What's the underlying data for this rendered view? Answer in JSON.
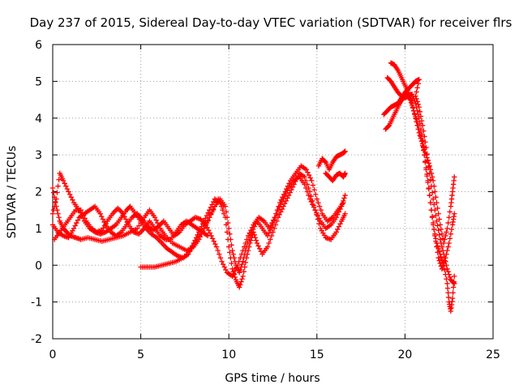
{
  "chart_data": {
    "type": "scatter",
    "title": "Day 237 of 2015, Sidereal Day-to-day VTEC variation (SDTVAR) for receiver flrs",
    "xlabel": "GPS time / hours",
    "ylabel": "SDTVAR / TECUs",
    "xlim": [
      0,
      25
    ],
    "ylim": [
      -2,
      6
    ],
    "xticks": [
      "0",
      "5",
      "10",
      "15",
      "20",
      "25"
    ],
    "yticks": [
      "-2",
      "-1",
      "0",
      "1",
      "2",
      "3",
      "4",
      "5",
      "6"
    ],
    "grid": true,
    "marker": "plus",
    "color": "#ff0000",
    "series": [
      {
        "points": [
          [
            0.0,
            2.1
          ],
          [
            0.2,
            1.6
          ],
          [
            0.4,
            1.2
          ],
          [
            0.6,
            1.0
          ],
          [
            0.8,
            0.9
          ],
          [
            1.0,
            0.8
          ],
          [
            1.3,
            0.75
          ],
          [
            1.6,
            0.7
          ],
          [
            2.0,
            0.75
          ],
          [
            2.4,
            0.7
          ],
          [
            2.8,
            0.65
          ],
          [
            3.2,
            0.7
          ],
          [
            3.6,
            0.75
          ],
          [
            4.0,
            0.8
          ],
          [
            4.4,
            0.9
          ],
          [
            4.8,
            1.0
          ],
          [
            5.2,
            1.3
          ],
          [
            5.5,
            1.5
          ],
          [
            5.8,
            1.3
          ],
          [
            6.1,
            1.0
          ],
          [
            6.4,
            0.8
          ],
          [
            6.8,
            0.6
          ],
          [
            7.2,
            0.5
          ],
          [
            7.6,
            0.4
          ],
          [
            8.0,
            0.5
          ],
          [
            8.3,
            0.7
          ],
          [
            8.6,
            1.0
          ],
          [
            8.9,
            1.3
          ],
          [
            9.2,
            1.6
          ],
          [
            9.5,
            1.8
          ],
          [
            9.8,
            1.6
          ],
          [
            10.0,
            1.0
          ],
          [
            10.2,
            0.4
          ],
          [
            10.4,
            0.0
          ],
          [
            10.6,
            -0.2
          ],
          [
            10.8,
            0.1
          ],
          [
            11.0,
            0.5
          ],
          [
            11.3,
            0.9
          ],
          [
            11.6,
            1.2
          ],
          [
            11.9,
            1.0
          ],
          [
            12.2,
            0.8
          ],
          [
            12.5,
            1.1
          ],
          [
            12.8,
            1.5
          ],
          [
            13.1,
            1.8
          ],
          [
            13.4,
            2.1
          ],
          [
            13.7,
            2.3
          ],
          [
            14.0,
            2.4
          ],
          [
            14.3,
            2.2
          ],
          [
            14.6,
            1.8
          ],
          [
            14.9,
            1.5
          ],
          [
            15.2,
            1.2
          ],
          [
            15.5,
            1.0
          ],
          [
            15.8,
            1.1
          ],
          [
            16.1,
            1.3
          ],
          [
            16.4,
            1.6
          ],
          [
            16.6,
            1.9
          ]
        ]
      },
      {
        "points": [
          [
            0.0,
            1.4
          ],
          [
            0.2,
            1.8
          ],
          [
            0.4,
            2.5
          ],
          [
            0.6,
            2.3
          ],
          [
            0.9,
            2.0
          ],
          [
            1.2,
            1.7
          ],
          [
            1.5,
            1.5
          ],
          [
            1.8,
            1.2
          ],
          [
            2.1,
            1.0
          ],
          [
            2.4,
            0.9
          ],
          [
            2.7,
            0.85
          ],
          [
            3.0,
            0.9
          ],
          [
            3.3,
            1.0
          ],
          [
            3.6,
            1.1
          ],
          [
            3.9,
            1.3
          ],
          [
            4.2,
            1.5
          ],
          [
            4.4,
            1.6
          ],
          [
            4.7,
            1.4
          ],
          [
            5.0,
            1.2
          ],
          [
            5.3,
            1.0
          ],
          [
            5.6,
            0.85
          ],
          [
            5.9,
            0.75
          ],
          [
            6.2,
            0.6
          ],
          [
            6.5,
            0.45
          ],
          [
            6.8,
            0.35
          ],
          [
            7.1,
            0.25
          ],
          [
            7.4,
            0.2
          ],
          [
            7.7,
            0.3
          ],
          [
            8.0,
            0.6
          ],
          [
            8.3,
            0.9
          ],
          [
            8.6,
            1.2
          ],
          [
            8.9,
            1.5
          ],
          [
            9.2,
            1.8
          ],
          [
            9.5,
            1.7
          ],
          [
            9.8,
            1.3
          ],
          [
            10.0,
            0.5
          ],
          [
            10.2,
            -0.1
          ],
          [
            10.4,
            -0.4
          ],
          [
            10.6,
            -0.6
          ],
          [
            10.8,
            -0.3
          ],
          [
            11.0,
            0.2
          ],
          [
            11.2,
            0.6
          ],
          [
            11.4,
            0.9
          ],
          [
            11.6,
            0.6
          ],
          [
            11.9,
            0.3
          ],
          [
            12.2,
            0.5
          ],
          [
            12.5,
            0.9
          ],
          [
            12.8,
            1.3
          ],
          [
            13.1,
            1.6
          ],
          [
            13.4,
            1.9
          ],
          [
            13.7,
            2.2
          ],
          [
            14.0,
            2.5
          ],
          [
            14.3,
            2.4
          ],
          [
            14.6,
            2.0
          ],
          [
            14.9,
            1.5
          ],
          [
            15.2,
            1.0
          ],
          [
            15.5,
            0.75
          ],
          [
            15.8,
            0.7
          ],
          [
            16.1,
            0.9
          ],
          [
            16.4,
            1.2
          ],
          [
            16.6,
            1.4
          ]
        ]
      },
      {
        "points": [
          [
            0.0,
            1.1
          ],
          [
            0.3,
            0.9
          ],
          [
            0.6,
            0.8
          ],
          [
            0.9,
            0.75
          ],
          [
            1.2,
            1.0
          ],
          [
            1.5,
            1.3
          ],
          [
            1.8,
            1.4
          ],
          [
            2.1,
            1.5
          ],
          [
            2.4,
            1.6
          ],
          [
            2.7,
            1.4
          ],
          [
            3.0,
            1.1
          ],
          [
            3.3,
            0.9
          ],
          [
            3.6,
            0.8
          ],
          [
            3.9,
            0.9
          ],
          [
            4.2,
            1.1
          ],
          [
            4.5,
            1.3
          ],
          [
            4.8,
            1.4
          ],
          [
            5.1,
            1.25
          ],
          [
            5.4,
            1.05
          ],
          [
            5.7,
            0.95
          ],
          [
            6.0,
            1.05
          ],
          [
            6.3,
            1.2
          ],
          [
            6.6,
            1.0
          ],
          [
            6.9,
            0.8
          ],
          [
            7.2,
            0.9
          ],
          [
            7.5,
            1.1
          ],
          [
            7.8,
            1.2
          ],
          [
            8.1,
            1.3
          ],
          [
            8.4,
            1.25
          ],
          [
            8.7,
            1.1
          ],
          [
            9.0,
            0.8
          ],
          [
            9.3,
            0.5
          ],
          [
            9.6,
            0.1
          ],
          [
            9.9,
            -0.2
          ],
          [
            10.2,
            -0.3
          ],
          [
            10.5,
            0.0
          ],
          [
            10.8,
            0.4
          ],
          [
            11.1,
            0.8
          ],
          [
            11.4,
            1.1
          ],
          [
            11.7,
            1.3
          ],
          [
            12.0,
            1.2
          ],
          [
            12.3,
            1.0
          ],
          [
            12.6,
            1.3
          ],
          [
            12.9,
            1.7
          ],
          [
            13.2,
            2.0
          ],
          [
            13.5,
            2.3
          ],
          [
            13.8,
            2.5
          ],
          [
            14.1,
            2.7
          ],
          [
            14.4,
            2.6
          ],
          [
            14.7,
            2.3
          ],
          [
            15.0,
            1.8
          ],
          [
            15.3,
            1.4
          ],
          [
            15.6,
            1.2
          ],
          [
            15.9,
            1.3
          ],
          [
            16.2,
            1.5
          ],
          [
            16.5,
            1.7
          ]
        ]
      },
      {
        "points": [
          [
            0.1,
            0.7
          ],
          [
            0.4,
            0.9
          ],
          [
            0.7,
            1.1
          ],
          [
            1.0,
            1.3
          ],
          [
            1.3,
            1.5
          ],
          [
            1.6,
            1.5
          ],
          [
            1.9,
            1.2
          ],
          [
            2.2,
            1.0
          ],
          [
            2.5,
            0.9
          ],
          [
            2.8,
            0.95
          ],
          [
            3.1,
            1.2
          ],
          [
            3.4,
            1.4
          ],
          [
            3.7,
            1.55
          ],
          [
            4.0,
            1.4
          ],
          [
            4.3,
            1.1
          ],
          [
            4.6,
            0.9
          ],
          [
            4.9,
            0.85
          ],
          [
            5.2,
            1.0
          ],
          [
            5.5,
            1.2
          ],
          [
            5.8,
            1.0
          ],
          [
            6.1,
            0.8
          ],
          [
            6.4,
            0.7
          ],
          [
            6.7,
            0.7
          ],
          [
            7.0,
            0.9
          ],
          [
            7.3,
            1.1
          ],
          [
            7.6,
            1.2
          ],
          [
            7.9,
            1.1
          ],
          [
            8.2,
            1.0
          ],
          [
            8.5,
            0.9
          ],
          [
            8.8,
            0.8
          ]
        ]
      },
      {
        "points": [
          [
            5.0,
            -0.05
          ],
          [
            5.4,
            -0.05
          ],
          [
            5.8,
            -0.05
          ],
          [
            6.2,
            0.0
          ],
          [
            6.6,
            0.05
          ],
          [
            7.0,
            0.1
          ],
          [
            7.4,
            0.2
          ],
          [
            7.8,
            0.4
          ],
          [
            8.2,
            0.7
          ],
          [
            8.6,
            1.0
          ],
          [
            9.0,
            1.4
          ],
          [
            9.4,
            1.8
          ],
          [
            9.7,
            1.6
          ]
        ]
      },
      {
        "points": [
          [
            15.1,
            2.7
          ],
          [
            15.3,
            2.9
          ],
          [
            15.5,
            2.8
          ],
          [
            15.7,
            2.6
          ],
          [
            15.9,
            2.8
          ],
          [
            16.1,
            2.95
          ],
          [
            16.3,
            3.0
          ],
          [
            16.5,
            3.05
          ],
          [
            16.6,
            3.1
          ]
        ]
      },
      {
        "points": [
          [
            15.5,
            2.5
          ],
          [
            15.7,
            2.4
          ],
          [
            15.9,
            2.3
          ],
          [
            16.1,
            2.45
          ],
          [
            16.3,
            2.5
          ],
          [
            16.5,
            2.4
          ],
          [
            16.6,
            2.5
          ]
        ]
      },
      {
        "points": [
          [
            18.9,
            3.7
          ],
          [
            19.1,
            3.8
          ],
          [
            19.3,
            4.0
          ],
          [
            19.5,
            4.2
          ],
          [
            19.7,
            4.4
          ],
          [
            19.9,
            4.55
          ],
          [
            20.1,
            4.65
          ],
          [
            20.3,
            4.5
          ],
          [
            20.5,
            4.2
          ],
          [
            20.7,
            3.9
          ],
          [
            20.9,
            3.5
          ],
          [
            21.1,
            3.0
          ],
          [
            21.3,
            2.3
          ],
          [
            21.5,
            1.5
          ],
          [
            21.7,
            0.8
          ],
          [
            21.9,
            0.2
          ],
          [
            22.1,
            -0.1
          ],
          [
            22.3,
            0.2
          ],
          [
            22.5,
            0.6
          ],
          [
            22.7,
            1.1
          ],
          [
            22.8,
            1.4
          ]
        ]
      },
      {
        "points": [
          [
            19.0,
            5.1
          ],
          [
            19.2,
            5.0
          ],
          [
            19.4,
            4.85
          ],
          [
            19.6,
            4.7
          ],
          [
            19.8,
            4.6
          ],
          [
            20.0,
            4.55
          ],
          [
            20.2,
            4.6
          ],
          [
            20.4,
            4.65
          ],
          [
            20.6,
            4.4
          ],
          [
            20.8,
            4.0
          ],
          [
            21.0,
            3.4
          ],
          [
            21.2,
            2.6
          ],
          [
            21.4,
            1.9
          ],
          [
            21.6,
            1.1
          ],
          [
            21.8,
            0.6
          ],
          [
            22.0,
            0.3
          ],
          [
            22.2,
            0.0
          ],
          [
            22.4,
            -0.5
          ],
          [
            22.5,
            -1.0
          ],
          [
            22.6,
            -1.25
          ],
          [
            22.7,
            -0.9
          ],
          [
            22.8,
            -0.3
          ]
        ]
      },
      {
        "points": [
          [
            19.2,
            5.5
          ],
          [
            19.4,
            5.45
          ],
          [
            19.6,
            5.3
          ],
          [
            19.8,
            5.1
          ],
          [
            20.0,
            4.9
          ],
          [
            20.2,
            4.7
          ],
          [
            20.4,
            4.4
          ],
          [
            20.6,
            4.0
          ],
          [
            20.8,
            3.6
          ],
          [
            21.0,
            3.3
          ],
          [
            21.2,
            3.0
          ],
          [
            21.4,
            2.7
          ],
          [
            21.6,
            2.3
          ],
          [
            21.8,
            1.7
          ],
          [
            22.0,
            1.1
          ],
          [
            22.2,
            0.6
          ],
          [
            22.4,
            1.0
          ],
          [
            22.6,
            1.6
          ],
          [
            22.7,
            2.0
          ],
          [
            22.8,
            2.4
          ]
        ]
      },
      {
        "points": [
          [
            18.8,
            4.1
          ],
          [
            19.0,
            4.2
          ],
          [
            19.2,
            4.3
          ],
          [
            19.4,
            4.35
          ],
          [
            19.6,
            4.4
          ],
          [
            19.8,
            4.55
          ],
          [
            20.0,
            4.7
          ],
          [
            20.2,
            4.8
          ],
          [
            20.4,
            4.9
          ],
          [
            20.6,
            5.0
          ],
          [
            20.8,
            5.05
          ],
          [
            20.6,
            4.6
          ],
          [
            20.8,
            4.3
          ],
          [
            21.0,
            3.8
          ],
          [
            21.2,
            3.2
          ],
          [
            21.4,
            2.5
          ],
          [
            21.6,
            1.8
          ],
          [
            21.8,
            1.2
          ],
          [
            22.0,
            0.7
          ],
          [
            22.2,
            0.3
          ],
          [
            22.4,
            -0.1
          ],
          [
            22.6,
            -0.4
          ],
          [
            22.8,
            -0.5
          ]
        ]
      }
    ]
  }
}
